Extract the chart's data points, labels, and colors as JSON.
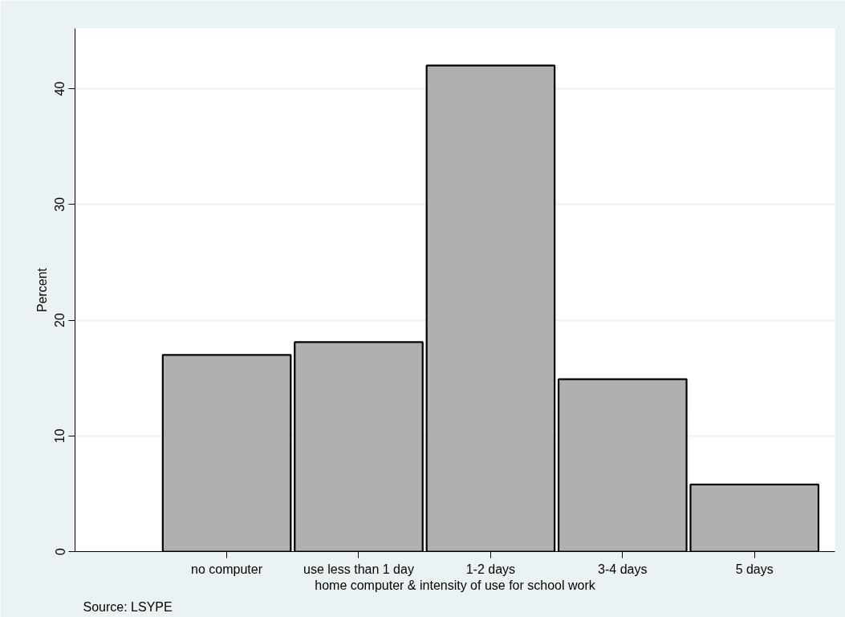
{
  "chart_data": {
    "type": "bar",
    "categories": [
      "no computer",
      "use less than 1 day",
      "1-2 days",
      "3-4 days",
      "5 days"
    ],
    "values": [
      17.0,
      18.1,
      42.0,
      14.9,
      5.8
    ],
    "color": "#b0b0b0",
    "xlabel": "home computer & intensity of use for school work",
    "ylabel": "Percent",
    "ylim": [
      0,
      45.2
    ],
    "yticks": [
      0,
      10,
      20,
      30,
      40
    ],
    "grid": "y",
    "annotations": [
      "Source: LSYPE"
    ]
  }
}
